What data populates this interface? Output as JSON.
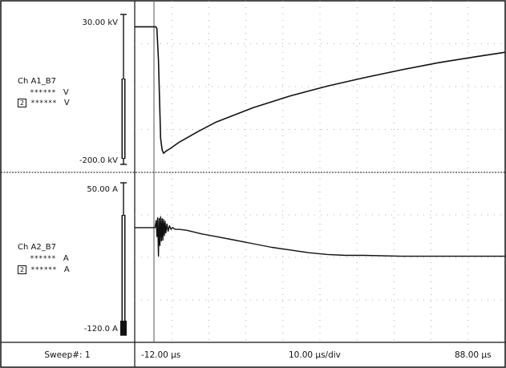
{
  "chart_data": [
    {
      "type": "line",
      "channel_label": "Ch A1_B7",
      "readouts": [
        {
          "marker": "",
          "value": "******",
          "unit": "V"
        },
        {
          "marker": "2",
          "value": "******",
          "unit": "V"
        }
      ],
      "ylim_labels": {
        "top": "30.00 kV",
        "bottom": "-200.0 kV"
      },
      "ylim": [
        -200,
        30
      ],
      "y_unit": "kV",
      "x_unit": "µs",
      "xlim": [
        -12,
        88
      ],
      "grid": true,
      "x": [
        -12,
        -7,
        -6.3,
        -6,
        -5.6,
        -5.2,
        -5,
        -4.6,
        -4.2,
        -3.6,
        -2.5,
        0,
        5,
        10,
        20,
        30,
        40,
        50,
        60,
        70,
        80,
        88
      ],
      "y": [
        11,
        11,
        11,
        8,
        -40,
        -120,
        -160,
        -178,
        -183,
        -180,
        -176,
        -166,
        -150,
        -135,
        -113,
        -95,
        -80,
        -67,
        -55,
        -44,
        -35,
        -28
      ],
      "color": "#111111"
    },
    {
      "type": "line",
      "channel_label": "Ch A2_B7",
      "readouts": [
        {
          "marker": "",
          "value": "******",
          "unit": "A"
        },
        {
          "marker": "2",
          "value": "******",
          "unit": "A"
        }
      ],
      "ylim_labels": {
        "top": "50.00 A",
        "bottom": "-120.0 A"
      },
      "ylim": [
        -120,
        50
      ],
      "y_unit": "A",
      "x_unit": "µs",
      "xlim": [
        -12,
        88
      ],
      "grid": true,
      "x": [
        -12,
        -7,
        -6.5,
        -6.2,
        -6,
        -5.8,
        -5.6,
        -5.4,
        -5.2,
        -5,
        -4.8,
        -4.6,
        -4.4,
        -4.2,
        -4,
        -3.8,
        -3.6,
        -3.3,
        -3,
        -2.6,
        -2.2,
        -1.8,
        -1,
        0,
        2,
        6,
        10,
        15,
        20,
        25,
        30,
        35,
        40,
        45,
        50,
        60,
        70,
        80,
        88
      ],
      "y": [
        0,
        0,
        0,
        8,
        -10,
        11,
        -32,
        10,
        -20,
        12,
        -15,
        10,
        -14,
        9,
        -9,
        7,
        -6,
        4,
        -4,
        2,
        -2,
        0,
        -2,
        -2,
        -3,
        -7,
        -10,
        -14,
        -18,
        -22,
        -25,
        -28,
        -30,
        -31,
        -31,
        -32,
        -32,
        -32,
        -32
      ],
      "color": "#111111"
    }
  ],
  "footer": {
    "sweep": "Sweep#: 1",
    "x_start": "-12.00 µs",
    "x_div": "10.00 µs/div",
    "x_end": "88.00 µs"
  }
}
